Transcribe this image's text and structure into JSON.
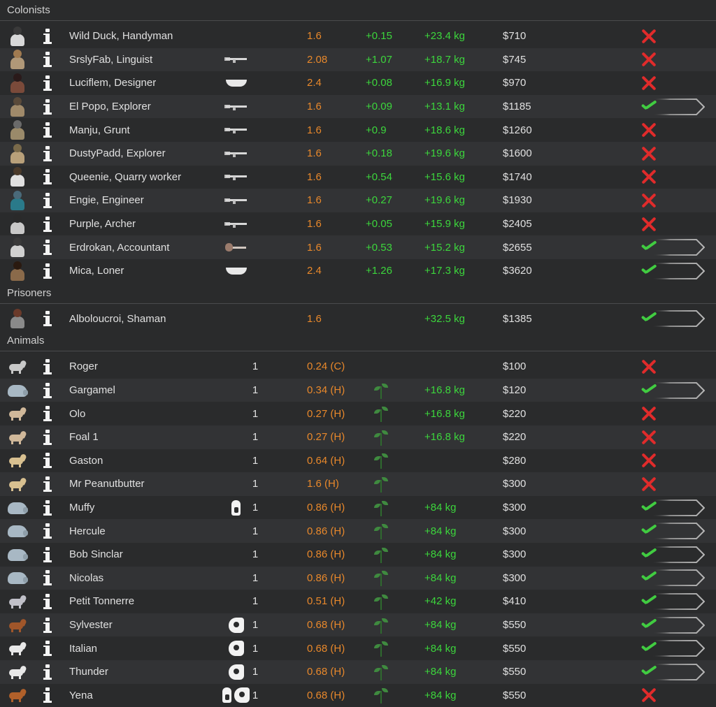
{
  "sections": [
    {
      "title": "Colonists",
      "rows": [
        {
          "name": "Wild Duck, Handyman",
          "portrait": "colonist-portrait",
          "hair": "#3a3a3a",
          "shirt": "#d8d8d8",
          "gear": [],
          "qty": "",
          "mass": "1.6",
          "extra": "+0.15",
          "yield": "+23.4 kg",
          "value": "$710",
          "allowed": false
        },
        {
          "name": "SrslyFab, Linguist",
          "portrait": "colonist-portrait",
          "hair": "#a07a50",
          "shirt": "#b09878",
          "gear": [
            "rifle"
          ],
          "qty": "",
          "mass": "2.08",
          "extra": "+1.07",
          "yield": "+18.7 kg",
          "value": "$745",
          "allowed": false
        },
        {
          "name": "Luciflem, Designer",
          "portrait": "colonist-portrait",
          "hair": "#2a1a1a",
          "shirt": "#7a4a3a",
          "gear": [
            "knife"
          ],
          "qty": "",
          "mass": "2.4",
          "extra": "+0.08",
          "yield": "+16.9 kg",
          "value": "$970",
          "allowed": false
        },
        {
          "name": "El Popo, Explorer",
          "portrait": "colonist-portrait",
          "hair": "#5a4a3a",
          "shirt": "#a08a6a",
          "gear": [
            "smg"
          ],
          "qty": "",
          "mass": "1.6",
          "extra": "+0.09",
          "yield": "+13.1 kg",
          "value": "$1185",
          "allowed": true
        },
        {
          "name": "Manju, Grunt",
          "portrait": "colonist-portrait",
          "hair": "#6a6a6a",
          "shirt": "#9a8a6a",
          "gear": [
            "rifle"
          ],
          "qty": "",
          "mass": "1.6",
          "extra": "+0.9",
          "yield": "+18.6 kg",
          "value": "$1260",
          "allowed": false
        },
        {
          "name": "DustyPadd, Explorer",
          "portrait": "colonist-portrait",
          "hair": "#7a6a4a",
          "shirt": "#b8a07a",
          "gear": [
            "rifle"
          ],
          "qty": "",
          "mass": "1.6",
          "extra": "+0.18",
          "yield": "+19.6 kg",
          "value": "$1600",
          "allowed": false
        },
        {
          "name": "Queenie, Quarry worker",
          "portrait": "colonist-portrait",
          "hair": "#4a3a2a",
          "shirt": "#e0e0e0",
          "gear": [
            "rifle"
          ],
          "qty": "",
          "mass": "1.6",
          "extra": "+0.54",
          "yield": "+15.6 kg",
          "value": "$1740",
          "allowed": false
        },
        {
          "name": "Engie, Engineer",
          "portrait": "colonist-portrait",
          "hair": "#4a6a7a",
          "shirt": "#2a7a8a",
          "gear": [
            "rifle"
          ],
          "qty": "",
          "mass": "1.6",
          "extra": "+0.27",
          "yield": "+19.6 kg",
          "value": "$1930",
          "allowed": false
        },
        {
          "name": "Purple, Archer",
          "portrait": "colonist-portrait",
          "hair": "#2a2a2a",
          "shirt": "#c8c8c8",
          "gear": [
            "rifle"
          ],
          "qty": "",
          "mass": "1.6",
          "extra": "+0.05",
          "yield": "+15.9 kg",
          "value": "$2405",
          "allowed": false
        },
        {
          "name": "Erdrokan, Accountant",
          "portrait": "colonist-portrait",
          "hair": "#3a3a3a",
          "shirt": "#d0d0d0",
          "gear": [
            "club"
          ],
          "qty": "",
          "mass": "1.6",
          "extra": "+0.53",
          "yield": "+15.2 kg",
          "value": "$2655",
          "allowed": true
        },
        {
          "name": "Mica, Loner",
          "portrait": "colonist-portrait",
          "hair": "#2a1a10",
          "shirt": "#8a6a4a",
          "gear": [
            "knife"
          ],
          "qty": "",
          "mass": "2.4",
          "extra": "+1.26",
          "yield": "+17.3 kg",
          "value": "$3620",
          "allowed": true
        }
      ]
    },
    {
      "title": "Prisoners",
      "rows": [
        {
          "name": "Alboloucroi, Shaman",
          "portrait": "prisoner-portrait",
          "hair": "#6a3a2a",
          "shirt": "#8a8a8a",
          "gear": [],
          "qty": "",
          "mass": "1.6",
          "extra": "",
          "yield": "+32.5 kg",
          "value": "$1385",
          "allowed": true
        }
      ]
    },
    {
      "title": "Animals",
      "rows": [
        {
          "name": "Roger",
          "portrait": "animal",
          "color": "#c8c8c8",
          "gear": [],
          "qty": "1",
          "mass": "0.24 (C)",
          "extra": "",
          "plant": false,
          "yield": "",
          "value": "$100",
          "allowed": false
        },
        {
          "name": "Gargamel",
          "portrait": "boomalope",
          "color": "#a8b8c4",
          "gear": [],
          "qty": "1",
          "mass": "0.34 (H)",
          "extra": "",
          "plant": true,
          "yield": "+16.8 kg",
          "value": "$120",
          "allowed": true
        },
        {
          "name": "Olo",
          "portrait": "animal",
          "color": "#d0b89a",
          "gear": [],
          "qty": "1",
          "mass": "0.27 (H)",
          "extra": "",
          "plant": true,
          "yield": "+16.8 kg",
          "value": "$220",
          "allowed": false
        },
        {
          "name": "Foal 1",
          "portrait": "animal",
          "color": "#d0b89a",
          "gear": [],
          "qty": "1",
          "mass": "0.27 (H)",
          "extra": "",
          "plant": true,
          "yield": "+16.8 kg",
          "value": "$220",
          "allowed": false
        },
        {
          "name": "Gaston",
          "portrait": "animal",
          "color": "#d8c090",
          "gear": [],
          "qty": "1",
          "mass": "0.64 (H)",
          "extra": "",
          "plant": true,
          "yield": "",
          "value": "$280",
          "allowed": false
        },
        {
          "name": "Mr Peanutbutter",
          "portrait": "animal",
          "color": "#d8c090",
          "gear": [],
          "qty": "1",
          "mass": "1.6 (H)",
          "extra": "",
          "plant": true,
          "yield": "",
          "value": "$300",
          "allowed": false
        },
        {
          "name": "Muffy",
          "portrait": "boomalope",
          "color": "#a8b8c4",
          "gear": [
            "pack"
          ],
          "qty": "1",
          "mass": "0.86 (H)",
          "extra": "",
          "plant": true,
          "yield": "+84 kg",
          "value": "$300",
          "allowed": true
        },
        {
          "name": "Hercule",
          "portrait": "boomalope",
          "color": "#a8b8c4",
          "gear": [],
          "qty": "1",
          "mass": "0.86 (H)",
          "extra": "",
          "plant": true,
          "yield": "+84 kg",
          "value": "$300",
          "allowed": true
        },
        {
          "name": "Bob Sinclar",
          "portrait": "boomalope",
          "color": "#a8b8c4",
          "gear": [],
          "qty": "1",
          "mass": "0.86 (H)",
          "extra": "",
          "plant": true,
          "yield": "+84 kg",
          "value": "$300",
          "allowed": true
        },
        {
          "name": "Nicolas",
          "portrait": "boomalope",
          "color": "#a8b8c4",
          "gear": [],
          "qty": "1",
          "mass": "0.86 (H)",
          "extra": "",
          "plant": true,
          "yield": "+84 kg",
          "value": "$300",
          "allowed": true
        },
        {
          "name": "Petit Tonnerre",
          "portrait": "animal",
          "color": "#c0c0c8",
          "gear": [],
          "qty": "1",
          "mass": "0.51 (H)",
          "extra": "",
          "plant": true,
          "yield": "+42 kg",
          "value": "$410",
          "allowed": true
        },
        {
          "name": "Sylvester",
          "portrait": "animal",
          "color": "#a0562a",
          "gear": [
            "horse"
          ],
          "qty": "1",
          "mass": "0.68 (H)",
          "extra": "",
          "plant": true,
          "yield": "+84 kg",
          "value": "$550",
          "allowed": true
        },
        {
          "name": "Italian",
          "portrait": "animal",
          "color": "#e8e8e8",
          "gear": [
            "horse"
          ],
          "qty": "1",
          "mass": "0.68 (H)",
          "extra": "",
          "plant": true,
          "yield": "+84 kg",
          "value": "$550",
          "allowed": true
        },
        {
          "name": "Thunder",
          "portrait": "animal",
          "color": "#e8e8e8",
          "gear": [
            "horse"
          ],
          "qty": "1",
          "mass": "0.68 (H)",
          "extra": "",
          "plant": true,
          "yield": "+84 kg",
          "value": "$550",
          "allowed": true
        },
        {
          "name": "Yena",
          "portrait": "animal",
          "color": "#b0602a",
          "gear": [
            "pack",
            "horse"
          ],
          "qty": "1",
          "mass": "0.68 (H)",
          "extra": "",
          "plant": true,
          "yield": "+84 kg",
          "value": "$550",
          "allowed": false
        }
      ]
    }
  ],
  "colors": {
    "mass": "#e8882b",
    "positive": "#3cd63c",
    "disallowed": "#e02b2b",
    "allowed": "#41cc41"
  }
}
